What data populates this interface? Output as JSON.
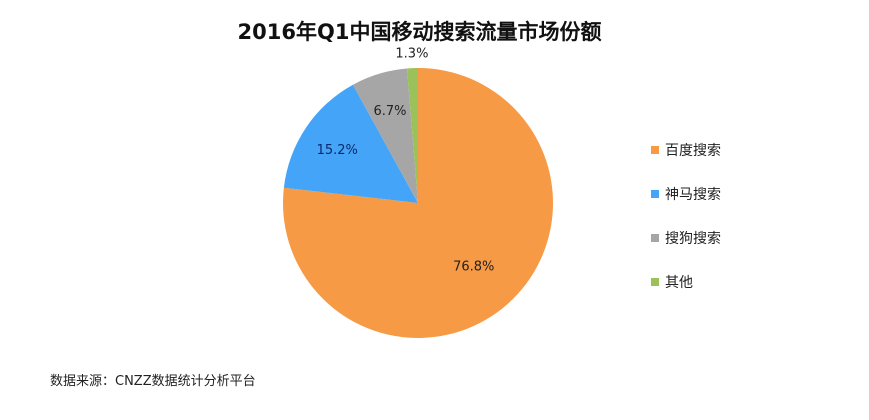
{
  "chart_data": {
    "type": "pie",
    "title": "2016年Q1中国移动搜索流量市场份额",
    "categories": [
      "百度搜索",
      "神马搜索",
      "搜狗搜索",
      "其他"
    ],
    "values": [
      76.8,
      15.2,
      6.7,
      1.3
    ],
    "labels": [
      "76.8%",
      "15.2%",
      "6.7%",
      "1.3%"
    ],
    "colors": [
      "#F79A45",
      "#44A4F8",
      "#A6A6A6",
      "#9BC25A"
    ],
    "start_angle": "12 o'clock, clockwise",
    "legend": "right"
  },
  "source": "数据来源：CNZZ数据统计分析平台"
}
